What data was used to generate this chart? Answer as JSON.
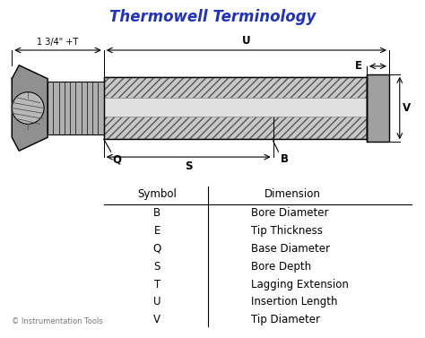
{
  "title": "Thermowell Terminology",
  "title_color": "#2233bb",
  "title_fontsize": 12,
  "bg_color": "#ffffff",
  "table_symbols": [
    "B",
    "E",
    "Q",
    "S",
    "T",
    "U",
    "V"
  ],
  "table_dimensions": [
    "Bore Diameter",
    "Tip Thickness",
    "Base Diameter",
    "Bore Depth",
    "Lagging Extension",
    "Insertion Length",
    "Tip Diameter"
  ],
  "table_header_symbol": "Symbol",
  "table_header_dim": "Dimension",
  "copyright": "© Instrumentation Tools",
  "label_fontsize": 7.5,
  "table_fontsize": 8.5,
  "diagram_bg": "#f8f8f8",
  "nut_color": "#909090",
  "thread_color": "#b0b0b0",
  "body_hatch_color": "#c8c8c8",
  "bore_color": "#e0e0e0",
  "tip_color": "#a0a0a0"
}
